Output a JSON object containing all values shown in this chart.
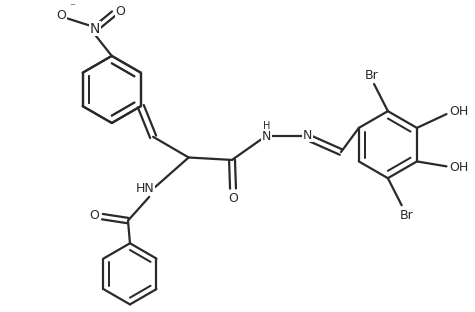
{
  "bg_color": "#ffffff",
  "line_color": "#2a2a2a",
  "line_width": 1.6,
  "font_size": 9.0,
  "figsize": [
    4.75,
    3.12
  ],
  "dpi": 100,
  "xlim": [
    0,
    9.5
  ],
  "ylim": [
    0,
    6.3
  ]
}
